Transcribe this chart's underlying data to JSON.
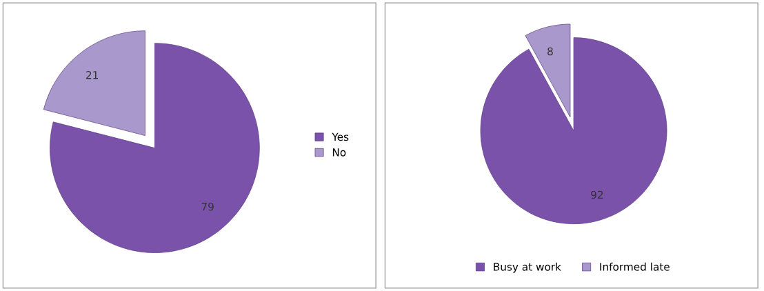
{
  "chart_data": [
    {
      "type": "pie",
      "categories": [
        "Yes",
        "No"
      ],
      "values": [
        79,
        21
      ],
      "colors": [
        "#7b52a9",
        "#a898cb"
      ],
      "data_labels": true,
      "legend": "right"
    },
    {
      "type": "pie",
      "categories": [
        "Busy at work",
        "Informed late"
      ],
      "values": [
        92,
        8
      ],
      "colors": [
        "#7b52a9",
        "#a898cb"
      ],
      "data_labels": true,
      "legend": "bottom"
    }
  ]
}
